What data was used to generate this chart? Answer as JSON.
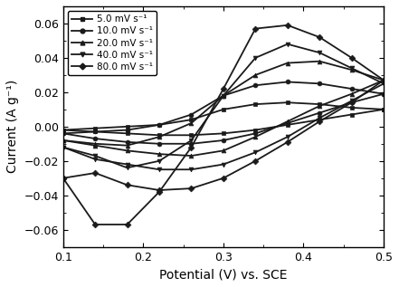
{
  "xlabel": "Potential (V) vs. SCE",
  "ylabel": "Current (A g⁻¹)",
  "xlim": [
    0.1,
    0.5
  ],
  "ylim": [
    -0.07,
    0.07
  ],
  "xticks": [
    0.1,
    0.2,
    0.3,
    0.4,
    0.5
  ],
  "yticks": [
    -0.06,
    -0.04,
    -0.02,
    0.0,
    0.02,
    0.04,
    0.06
  ],
  "legend_labels": [
    "5.0 mV s⁻¹",
    "10.0 mV s⁻¹",
    "20.0 mV s⁻¹",
    "40.0 mV s⁻¹",
    "80.0 mV s⁻¹"
  ],
  "markers": [
    "s",
    "o",
    "^",
    "v",
    "D"
  ],
  "curves": [
    {
      "label": "5.0 mV s⁻¹",
      "marker": "s",
      "x": [
        0.1,
        0.14,
        0.18,
        0.22,
        0.26,
        0.3,
        0.34,
        0.38,
        0.42,
        0.46,
        0.5,
        0.5,
        0.46,
        0.42,
        0.38,
        0.34,
        0.3,
        0.26,
        0.22,
        0.18,
        0.14,
        0.1
      ],
      "y": [
        -0.002,
        -0.001,
        0.0,
        0.001,
        0.004,
        0.01,
        0.013,
        0.014,
        0.013,
        0.011,
        0.01,
        0.01,
        0.007,
        0.004,
        0.001,
        -0.002,
        -0.004,
        -0.005,
        -0.005,
        -0.004,
        -0.003,
        -0.002
      ]
    },
    {
      "label": "10.0 mV s⁻¹",
      "marker": "o",
      "x": [
        0.1,
        0.14,
        0.18,
        0.22,
        0.26,
        0.3,
        0.34,
        0.38,
        0.42,
        0.46,
        0.5,
        0.5,
        0.46,
        0.42,
        0.38,
        0.34,
        0.3,
        0.26,
        0.22,
        0.18,
        0.14,
        0.1
      ],
      "y": [
        -0.004,
        -0.003,
        -0.002,
        0.001,
        0.007,
        0.018,
        0.024,
        0.026,
        0.025,
        0.022,
        0.019,
        0.019,
        0.014,
        0.008,
        0.002,
        -0.004,
        -0.008,
        -0.01,
        -0.01,
        -0.009,
        -0.007,
        -0.004
      ]
    },
    {
      "label": "20.0 mV s⁻¹",
      "marker": "^",
      "x": [
        0.1,
        0.14,
        0.18,
        0.22,
        0.26,
        0.3,
        0.34,
        0.38,
        0.42,
        0.46,
        0.5,
        0.5,
        0.46,
        0.42,
        0.38,
        0.34,
        0.3,
        0.26,
        0.22,
        0.18,
        0.14,
        0.1
      ],
      "y": [
        -0.008,
        -0.01,
        -0.011,
        -0.006,
        0.002,
        0.018,
        0.03,
        0.037,
        0.038,
        0.033,
        0.027,
        0.027,
        0.019,
        0.012,
        0.003,
        -0.006,
        -0.014,
        -0.017,
        -0.016,
        -0.014,
        -0.011,
        -0.008
      ]
    },
    {
      "label": "40.0 mV s⁻¹",
      "marker": "v",
      "x": [
        0.1,
        0.14,
        0.18,
        0.22,
        0.26,
        0.3,
        0.34,
        0.38,
        0.42,
        0.46,
        0.5,
        0.5,
        0.46,
        0.42,
        0.38,
        0.34,
        0.3,
        0.26,
        0.22,
        0.18,
        0.14,
        0.1
      ],
      "y": [
        -0.012,
        -0.017,
        -0.024,
        -0.02,
        -0.008,
        0.018,
        0.04,
        0.048,
        0.043,
        0.034,
        0.025,
        0.025,
        0.015,
        0.005,
        -0.006,
        -0.015,
        -0.022,
        -0.025,
        -0.025,
        -0.022,
        -0.019,
        -0.012
      ]
    },
    {
      "label": "80.0 mV s⁻¹",
      "marker": "D",
      "x": [
        0.1,
        0.14,
        0.18,
        0.22,
        0.26,
        0.3,
        0.34,
        0.38,
        0.42,
        0.46,
        0.5,
        0.5,
        0.46,
        0.42,
        0.38,
        0.34,
        0.3,
        0.26,
        0.22,
        0.18,
        0.14,
        0.1
      ],
      "y": [
        -0.03,
        -0.057,
        -0.057,
        -0.038,
        -0.012,
        0.022,
        0.057,
        0.059,
        0.052,
        0.04,
        0.027,
        0.027,
        0.014,
        0.003,
        -0.009,
        -0.02,
        -0.03,
        -0.036,
        -0.037,
        -0.034,
        -0.027,
        -0.03
      ]
    }
  ],
  "background_color": "#ffffff",
  "line_color": "#1a1a1a",
  "marker_size": 3.5,
  "linewidth": 1.3,
  "font_size": 10
}
